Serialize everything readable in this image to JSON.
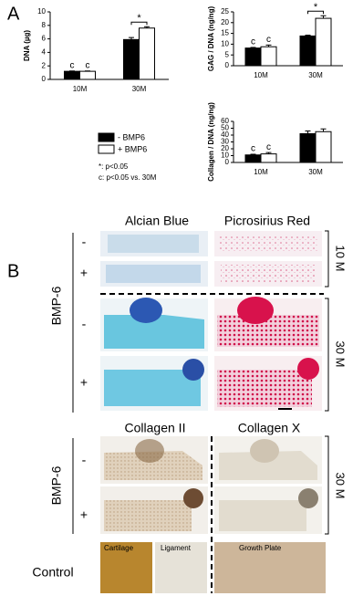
{
  "panel_a": {
    "label": "A",
    "note_star": "*: p<0.05",
    "note_c": "c: p<0.05 vs. 30M"
  },
  "chart_data": [
    {
      "type": "bar",
      "y_label": "DNA (µg)",
      "categories": [
        "10M",
        "30M"
      ],
      "ylim": [
        0,
        10
      ],
      "yticks": [
        0,
        2,
        4,
        6,
        8,
        10
      ],
      "series": [
        {
          "name": "- BMP6",
          "color": "#000000",
          "values": [
            1.2,
            5.9
          ],
          "errors": [
            0.05,
            0.3
          ]
        },
        {
          "name": "+ BMP6",
          "color": "#ffffff",
          "values": [
            1.2,
            7.6
          ],
          "errors": [
            0.05,
            0.2
          ]
        }
      ],
      "letters": [
        "c",
        "c"
      ],
      "significance": "*"
    },
    {
      "type": "bar",
      "y_label": "GAG / DNA (ng/ng)",
      "categories": [
        "10M",
        "30M"
      ],
      "ylim": [
        0,
        25
      ],
      "yticks": [
        0,
        5,
        10,
        15,
        20,
        25
      ],
      "series": [
        {
          "name": "- BMP6",
          "color": "#000000",
          "values": [
            8.2,
            13.8
          ],
          "errors": [
            0.3,
            0.4
          ]
        },
        {
          "name": "+ BMP6",
          "color": "#ffffff",
          "values": [
            8.8,
            22
          ],
          "errors": [
            0.8,
            1.2
          ]
        }
      ],
      "letters": [
        "c",
        "c"
      ],
      "significance": "*"
    },
    {
      "type": "bar",
      "y_label": "Collagen / DNA (ng/ng)",
      "categories": [
        "10M",
        "30M"
      ],
      "ylim": [
        0,
        60
      ],
      "yticks": [
        0,
        10,
        20,
        30,
        40,
        50,
        60
      ],
      "series": [
        {
          "name": "- BMP6",
          "color": "#000000",
          "values": [
            11,
            42
          ],
          "errors": [
            1,
            4
          ]
        },
        {
          "name": "+ BMP6",
          "color": "#ffffff",
          "values": [
            12.5,
            45
          ],
          "errors": [
            2,
            4
          ]
        }
      ],
      "letters": [
        "c",
        "c"
      ]
    }
  ],
  "panel_b": {
    "label": "B",
    "alcian": "Alcian Blue",
    "picro": "Picrosirius Red",
    "bmp": "BMP-6",
    "minus": "-",
    "plus": "+",
    "m10": "10 M",
    "m30": "30 M",
    "col2": "Collagen II",
    "colx": "Collagen X",
    "control": "Control",
    "cartilage": "Cartilage",
    "ligament": "Ligament",
    "growth": "Growth Plate"
  }
}
